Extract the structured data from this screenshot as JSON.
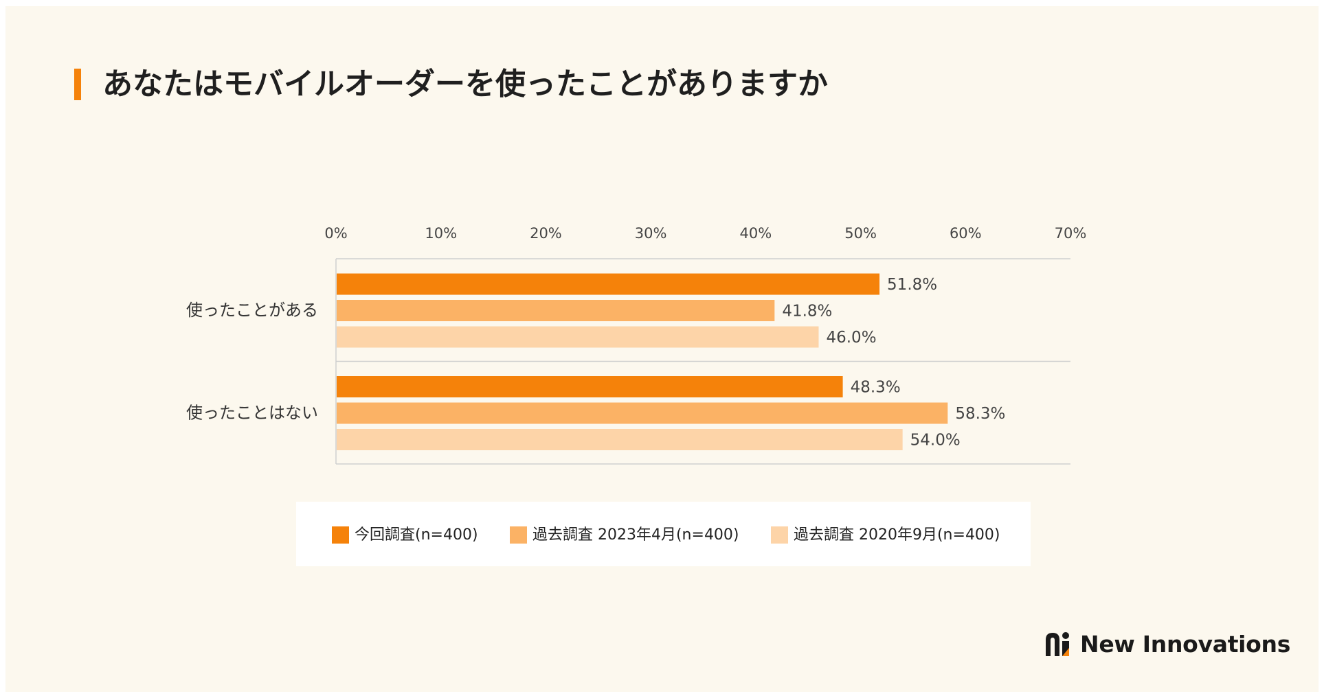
{
  "title": "あなたはモバイルオーダーを使ったことがありますか",
  "colors": {
    "current": "#f5820a",
    "past_2023": "#fbb265",
    "past_2020": "#fdd4a8",
    "accent": "#f5820a",
    "background": "#fcf8ee"
  },
  "chart_data": {
    "type": "bar",
    "orientation": "horizontal",
    "title": "あなたはモバイルオーダーを使ったことがありますか",
    "categories": [
      "使ったことがある",
      "使ったことはない"
    ],
    "series": [
      {
        "name": "今回調査(n=400)",
        "values": [
          51.8,
          48.3
        ],
        "labels": [
          "51.8%",
          "48.3%"
        ]
      },
      {
        "name": "過去調査 2023年4月(n=400)",
        "values": [
          41.8,
          58.3
        ],
        "labels": [
          "41.8%",
          "58.3%"
        ]
      },
      {
        "name": "過去調査 2020年9月(n=400)",
        "values": [
          46.0,
          54.0
        ],
        "labels": [
          "46.0%",
          "54.0%"
        ]
      }
    ],
    "xlim": [
      0,
      70
    ],
    "xticks": [
      0,
      10,
      20,
      30,
      40,
      50,
      60,
      70
    ],
    "xtick_labels": [
      "0%",
      "10%",
      "20%",
      "30%",
      "40%",
      "50%",
      "60%",
      "70%"
    ],
    "xlabel": "",
    "ylabel": "",
    "legend_position": "bottom",
    "axis_position": "top"
  },
  "legend": {
    "items": [
      {
        "label": "今回調査(n=400)"
      },
      {
        "label": "過去調査 2023年4月(n=400)"
      },
      {
        "label": "過去調査 2020年9月(n=400)"
      }
    ]
  },
  "logo": {
    "text": "New Innovations",
    "icon": "new-innovations-logo-icon"
  }
}
